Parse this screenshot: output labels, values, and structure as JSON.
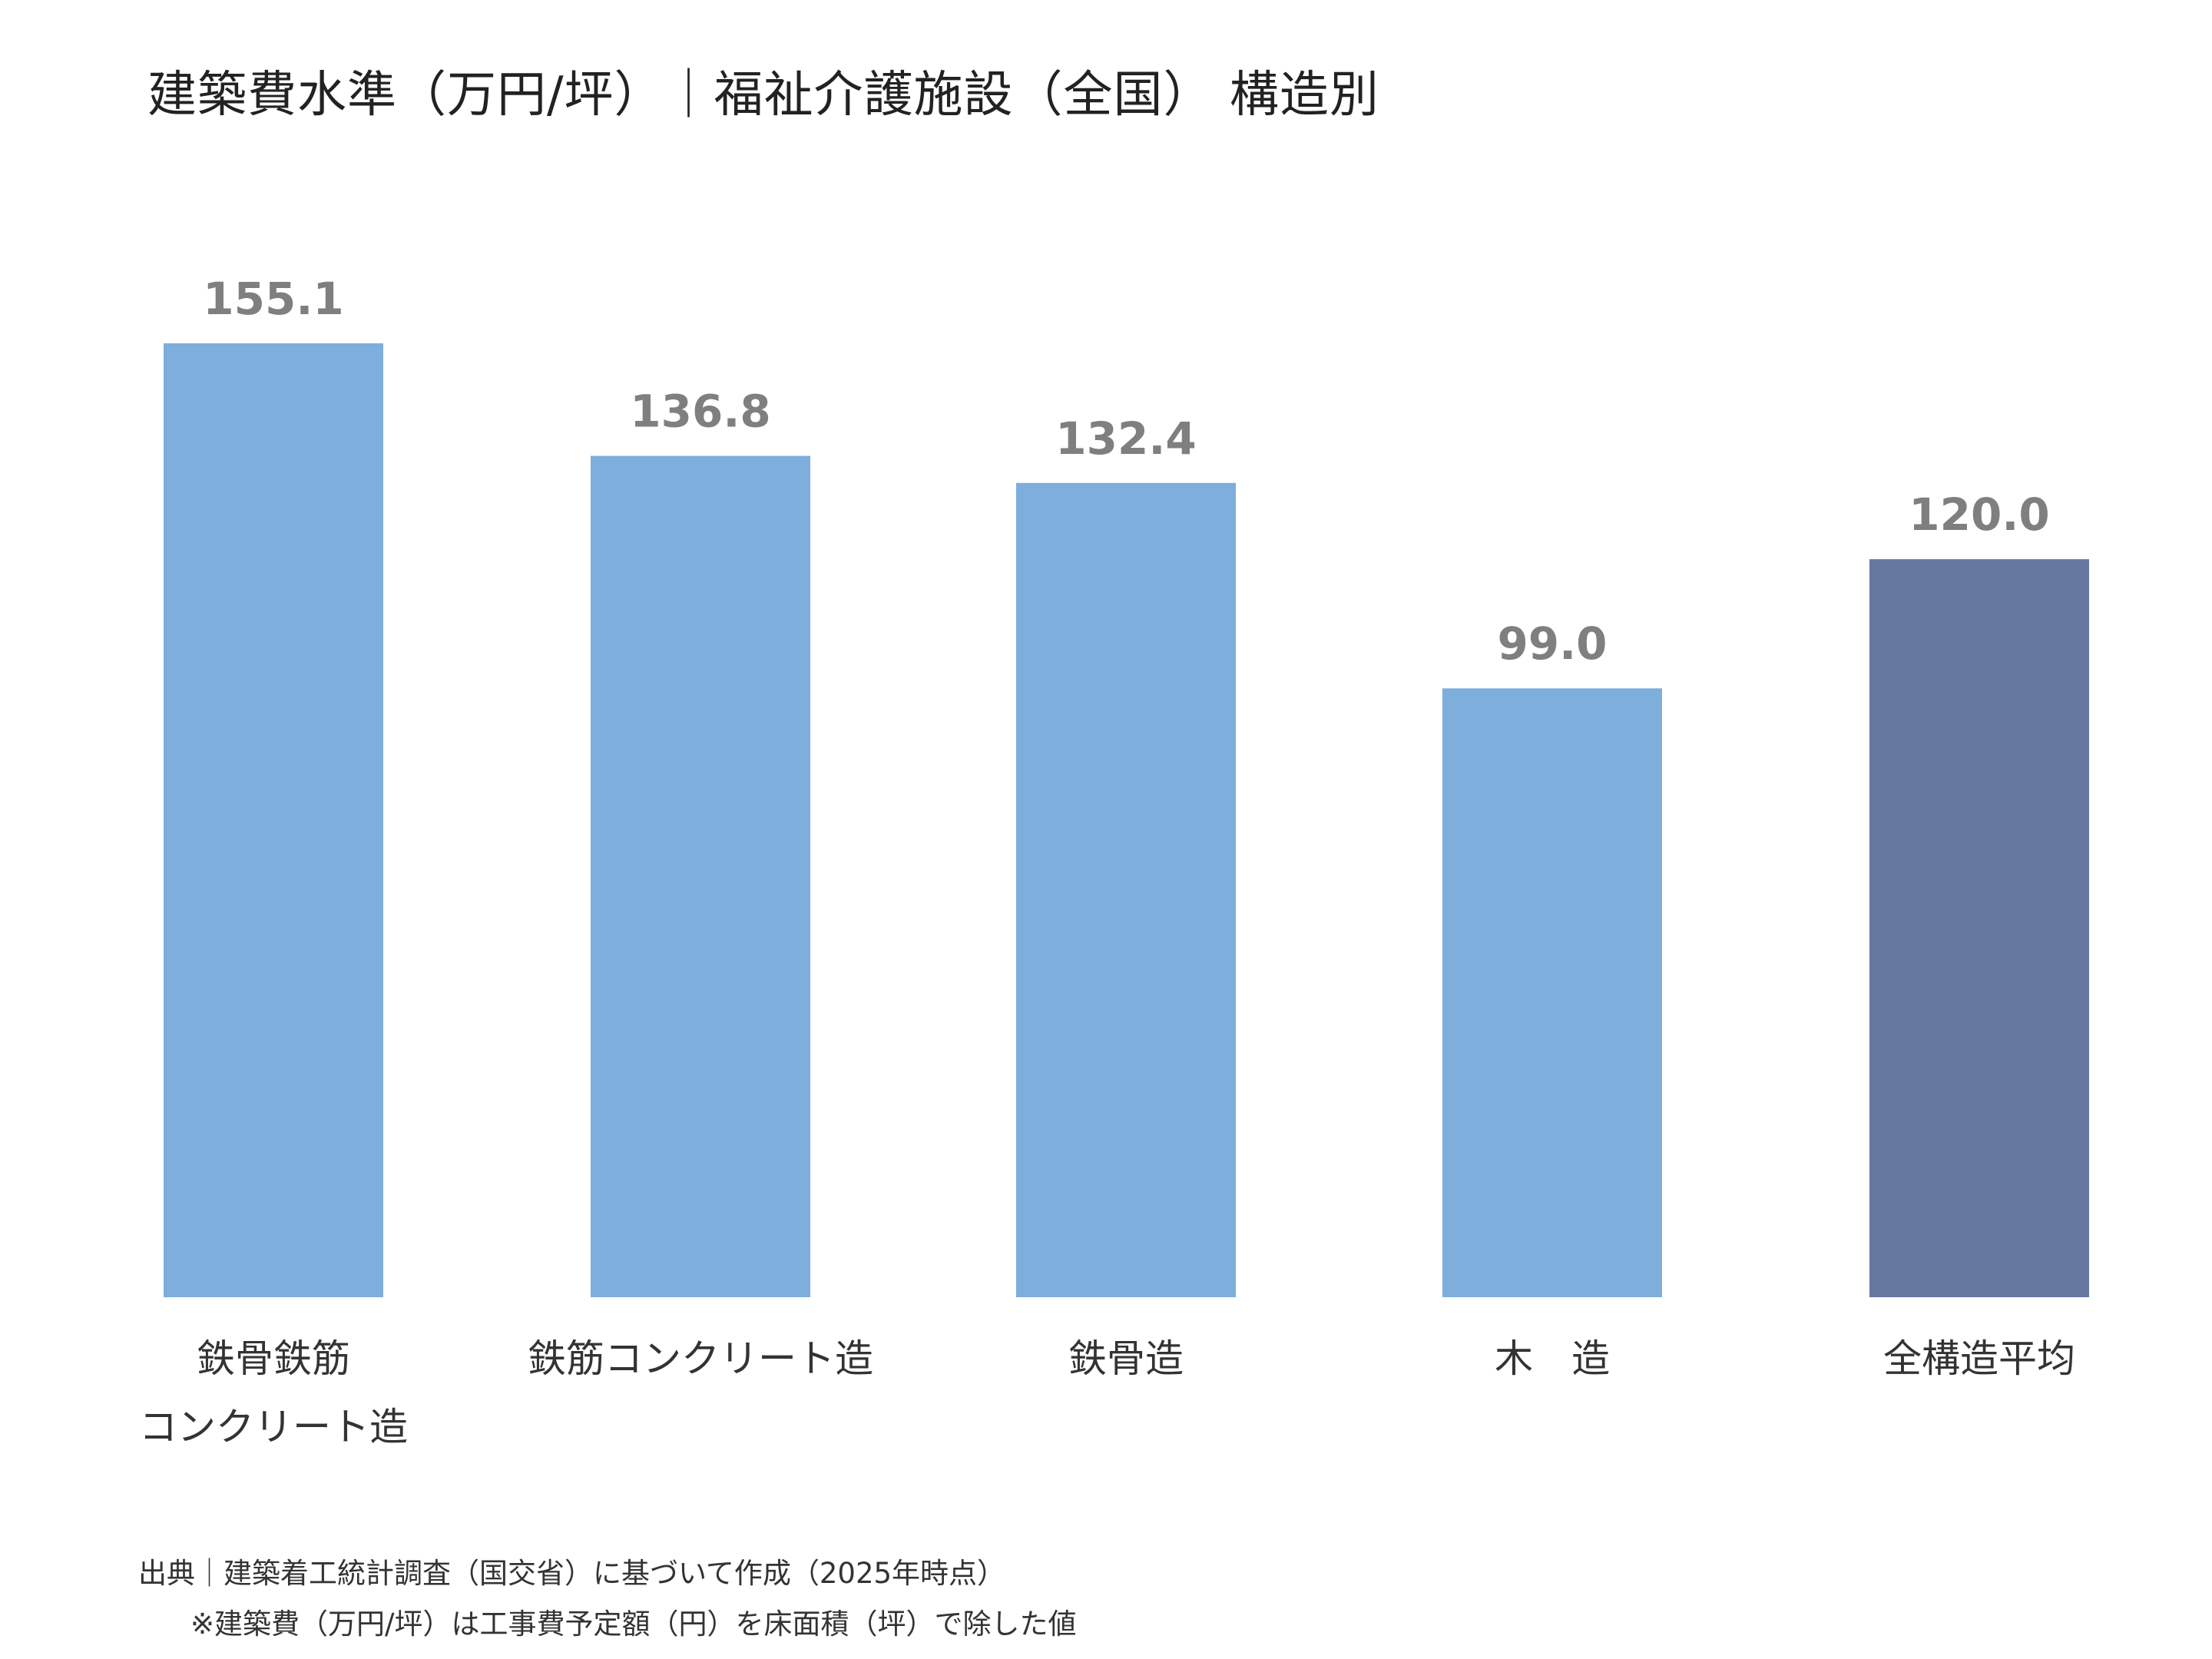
{
  "chart_data": {
    "type": "bar",
    "title": "建築費水準（万円/坪）｜福祉介護施設（全国） 構造別",
    "categories": [
      [
        "鉄骨鉄筋",
        "コンクリート造"
      ],
      [
        "鉄筋コンクリート造"
      ],
      [
        "鉄骨造"
      ],
      [
        "木　造"
      ],
      [
        "全構造平均"
      ]
    ],
    "values": [
      155.1,
      136.8,
      132.4,
      99.0,
      120.0
    ],
    "value_labels": [
      "155.1",
      "136.8",
      "132.4",
      "99.0",
      "120.0"
    ],
    "colors": [
      "#7DAEDC",
      "#7DAEDC",
      "#7DAEDC",
      "#7DAEDC",
      "#66789F"
    ],
    "ylim": [
      0,
      155.1
    ],
    "grid": false,
    "legend": "none"
  },
  "footer": {
    "source": "出典｜建築着工統計調査（国交省）に基づいて作成（2025年時点）",
    "note": "※建築費（万円/坪）は工事費予定額（円）を床面積（坪）で除した値"
  }
}
